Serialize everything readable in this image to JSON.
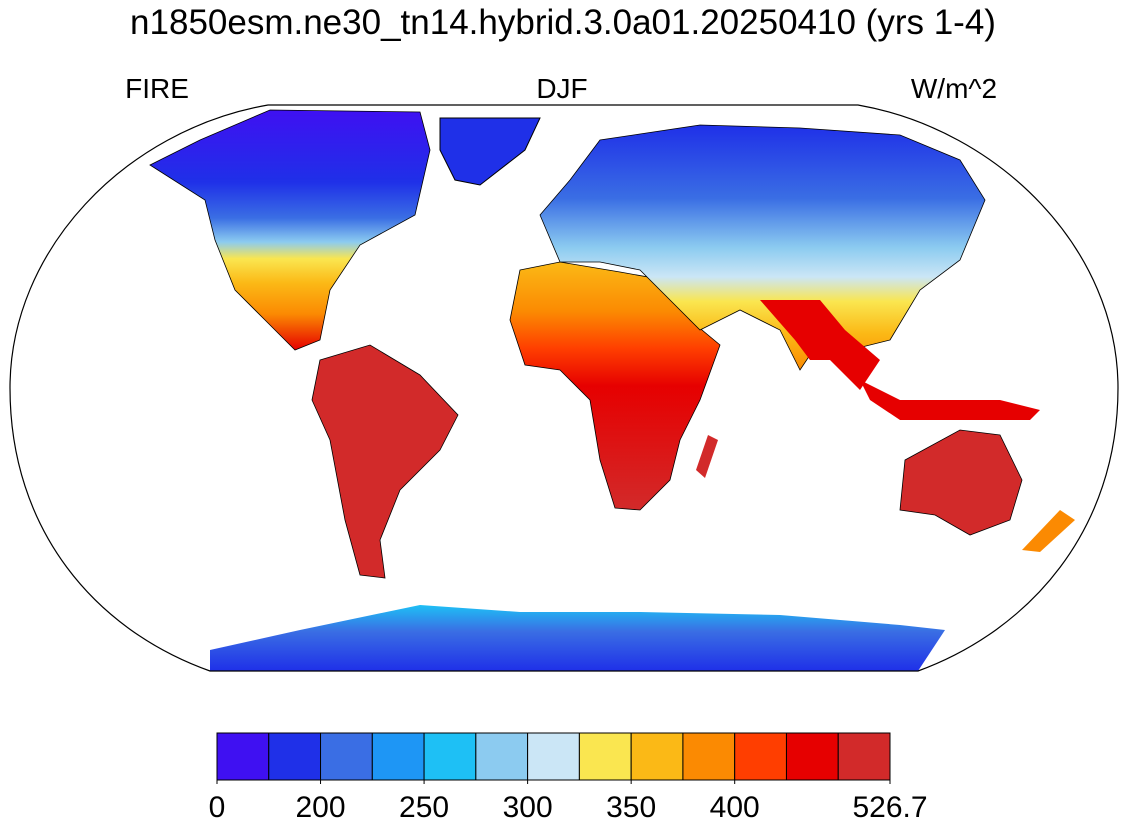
{
  "title": "n1850esm.ne30_tn14.hybrid.3.0a01.20250410 (yrs 1-4)",
  "left_label": "FIRE",
  "center_label": "DJF",
  "right_label": "W/m^2",
  "colorbar": {
    "colors": [
      "#3f10f2",
      "#1f30e8",
      "#3a6ee4",
      "#1e96f5",
      "#1ec0f5",
      "#8ccbf0",
      "#cbe6f6",
      "#fae650",
      "#fbb916",
      "#fb8a02",
      "#ff3e00",
      "#e60000",
      "#d22a2a"
    ],
    "boundaries": [
      0,
      null,
      200,
      null,
      250,
      null,
      300,
      null,
      350,
      null,
      400,
      null,
      null,
      526.7
    ]
  }
}
